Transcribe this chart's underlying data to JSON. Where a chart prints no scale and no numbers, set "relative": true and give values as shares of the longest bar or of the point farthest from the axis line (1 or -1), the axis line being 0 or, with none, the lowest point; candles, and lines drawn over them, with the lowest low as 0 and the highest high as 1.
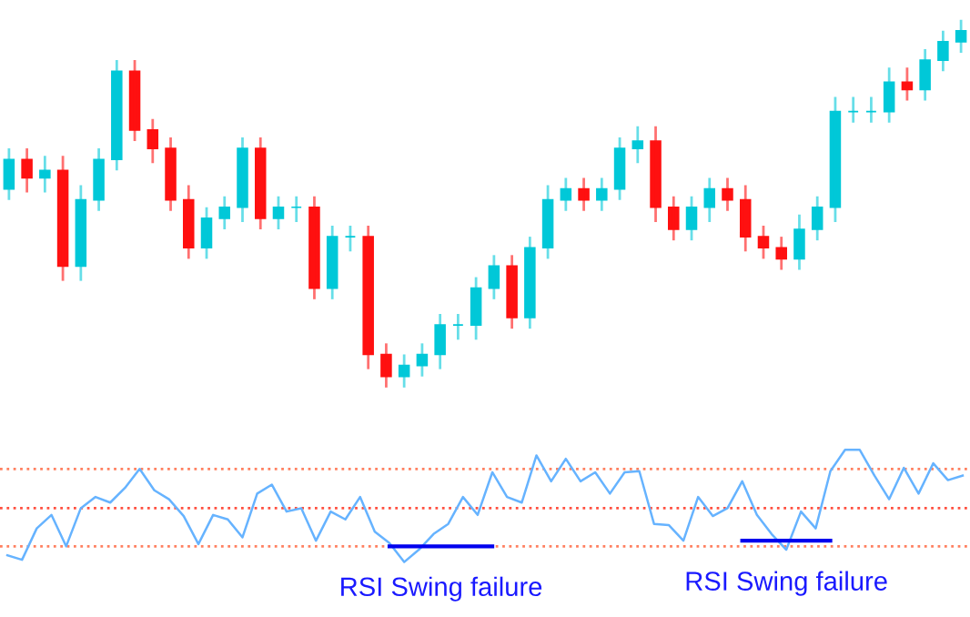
{
  "chart_data": [
    {
      "type": "candlestick",
      "relative": true,
      "tick_labels": false,
      "categories": [
        null,
        null,
        null,
        null,
        null,
        null,
        null,
        null,
        null,
        null,
        null,
        null,
        null,
        null,
        null,
        null,
        null,
        null,
        null,
        null,
        null,
        null,
        null,
        null,
        null,
        null,
        null,
        null,
        null,
        null,
        null,
        null,
        null,
        null,
        null,
        null,
        null,
        null,
        null,
        null,
        null,
        null,
        null,
        null,
        null,
        null,
        null,
        null,
        null,
        null,
        null,
        null,
        null,
        null
      ],
      "ohlc": [
        [
          0.54,
          0.65,
          0.51,
          0.62
        ],
        [
          0.62,
          0.65,
          0.53,
          0.57
        ],
        [
          0.57,
          0.63,
          0.53,
          0.59
        ],
        [
          0.59,
          0.63,
          0.29,
          0.33
        ],
        [
          0.33,
          0.55,
          0.29,
          0.51
        ],
        [
          0.51,
          0.65,
          0.48,
          0.62
        ],
        [
          0.62,
          0.89,
          0.59,
          0.86
        ],
        [
          0.86,
          0.89,
          0.67,
          0.7
        ],
        [
          0.7,
          0.73,
          0.61,
          0.65
        ],
        [
          0.65,
          0.68,
          0.48,
          0.51
        ],
        [
          0.51,
          0.55,
          0.35,
          0.38
        ],
        [
          0.38,
          0.49,
          0.35,
          0.46
        ],
        [
          0.46,
          0.52,
          0.43,
          0.49
        ],
        [
          0.49,
          0.68,
          0.45,
          0.65
        ],
        [
          0.65,
          0.68,
          0.43,
          0.46
        ],
        [
          0.46,
          0.52,
          0.43,
          0.49
        ],
        [
          0.49,
          0.52,
          0.45,
          0.49
        ],
        [
          0.49,
          0.52,
          0.24,
          0.27
        ],
        [
          0.27,
          0.44,
          0.24,
          0.41
        ],
        [
          0.41,
          0.44,
          0.37,
          0.41
        ],
        [
          0.41,
          0.44,
          0.05,
          0.09
        ],
        [
          0.09,
          0.12,
          0,
          0.03
        ],
        [
          0.03,
          0.09,
          0,
          0.06
        ],
        [
          0.06,
          0.12,
          0.03,
          0.09
        ],
        [
          0.09,
          0.2,
          0.05,
          0.17
        ],
        [
          0.17,
          0.2,
          0.13,
          0.17
        ],
        [
          0.17,
          0.3,
          0.13,
          0.27
        ],
        [
          0.27,
          0.36,
          0.24,
          0.33
        ],
        [
          0.33,
          0.36,
          0.16,
          0.19
        ],
        [
          0.19,
          0.41,
          0.16,
          0.38
        ],
        [
          0.38,
          0.55,
          0.35,
          0.51
        ],
        [
          0.51,
          0.57,
          0.48,
          0.54
        ],
        [
          0.54,
          0.57,
          0.48,
          0.51
        ],
        [
          0.51,
          0.57,
          0.48,
          0.54
        ],
        [
          0.54,
          0.68,
          0.51,
          0.65
        ],
        [
          0.65,
          0.71,
          0.61,
          0.67
        ],
        [
          0.67,
          0.71,
          0.45,
          0.49
        ],
        [
          0.49,
          0.52,
          0.4,
          0.43
        ],
        [
          0.43,
          0.52,
          0.4,
          0.49
        ],
        [
          0.49,
          0.57,
          0.45,
          0.54
        ],
        [
          0.54,
          0.57,
          0.48,
          0.51
        ],
        [
          0.51,
          0.55,
          0.37,
          0.41
        ],
        [
          0.41,
          0.44,
          0.35,
          0.38
        ],
        [
          0.38,
          0.41,
          0.32,
          0.35
        ],
        [
          0.35,
          0.47,
          0.32,
          0.43
        ],
        [
          0.43,
          0.52,
          0.4,
          0.49
        ],
        [
          0.49,
          0.79,
          0.45,
          0.75
        ],
        [
          0.75,
          0.79,
          0.72,
          0.75
        ],
        [
          0.75,
          0.79,
          0.72,
          0.75
        ],
        [
          0.75,
          0.87,
          0.72,
          0.83
        ],
        [
          0.83,
          0.87,
          0.78,
          0.81
        ],
        [
          0.81,
          0.92,
          0.78,
          0.89
        ],
        [
          0.89,
          0.97,
          0.86,
          0.94
        ],
        [
          0.94,
          1,
          0.91,
          0.97
        ]
      ],
      "colors": [
        "#00c8d8",
        "#ff1010",
        "#00c8d8",
        "#ff1010",
        "#00c8d8",
        "#00c8d8",
        "#00c8d8",
        "#ff1010",
        "#ff1010",
        "#ff1010",
        "#ff1010",
        "#00c8d8",
        "#00c8d8",
        "#00c8d8",
        "#ff1010",
        "#00c8d8",
        "#00c8d8",
        "#ff1010",
        "#00c8d8",
        "#00c8d8",
        "#ff1010",
        "#ff1010",
        "#00c8d8",
        "#00c8d8",
        "#00c8d8",
        "#00c8d8",
        "#00c8d8",
        "#00c8d8",
        "#ff1010",
        "#00c8d8",
        "#00c8d8",
        "#00c8d8",
        "#ff1010",
        "#00c8d8",
        "#00c8d8",
        "#00c8d8",
        "#ff1010",
        "#ff1010",
        "#00c8d8",
        "#00c8d8",
        "#ff1010",
        "#ff1010",
        "#ff1010",
        "#ff1010",
        "#00c8d8",
        "#00c8d8",
        "#00c8d8",
        "#00c8d8",
        "#00c8d8",
        "#00c8d8",
        "#ff1010",
        "#00c8d8",
        "#00c8d8",
        "#00c8d8"
      ]
    },
    {
      "type": "line",
      "relative": true,
      "tick_labels": false,
      "categories": [
        null,
        null,
        null,
        null,
        null,
        null,
        null,
        null,
        null,
        null,
        null,
        null,
        null,
        null,
        null,
        null,
        null,
        null,
        null,
        null,
        null,
        null,
        null,
        null,
        null,
        null,
        null,
        null,
        null,
        null,
        null,
        null,
        null,
        null,
        null,
        null,
        null,
        null,
        null,
        null,
        null,
        null,
        null,
        null,
        null,
        null,
        null,
        null,
        null,
        null,
        null,
        null,
        null,
        null,
        null,
        null,
        null,
        null,
        null,
        null,
        null,
        null,
        null,
        null,
        null,
        null
      ],
      "series": [
        {
          "color": "#66b3ff",
          "values": [
            0.06,
            0.02,
            0.3,
            0.42,
            0.14,
            0.48,
            0.58,
            0.53,
            0.66,
            0.83,
            0.64,
            0.56,
            0.41,
            0.16,
            0.42,
            0.38,
            0.22,
            0.61,
            0.69,
            0.45,
            0.48,
            0.19,
            0.45,
            0.38,
            0.58,
            0.27,
            0.17,
            0,
            0.11,
            0.25,
            0.34,
            0.58,
            0.42,
            0.8,
            0.58,
            0.53,
            0.95,
            0.72,
            0.92,
            0.72,
            0.8,
            0.61,
            0.8,
            0.81,
            0.34,
            0.33,
            0.19,
            0.58,
            0.41,
            0.48,
            0.72,
            0.42,
            0.25,
            0.11,
            0.45,
            0.3,
            0.81,
            1,
            1,
            0.77,
            0.56,
            0.84,
            0.61,
            0.88,
            0.73,
            0.77
          ]
        },
        {
          "color": "#0000ee",
          "values": [
            null,
            null,
            null,
            null,
            null,
            null,
            null,
            null,
            null,
            null,
            null,
            null,
            null,
            null,
            null,
            null,
            null,
            null,
            null,
            null,
            null,
            null,
            null,
            null,
            null,
            null,
            0.14,
            0.14,
            0.14,
            0.14,
            0.14,
            0.14,
            0.14,
            0.14,
            null,
            null,
            null,
            null,
            null,
            null,
            null,
            null,
            null,
            null,
            null,
            null,
            null,
            null,
            null,
            null,
            0.19,
            0.19,
            0.19,
            0.19,
            0.19,
            0.19,
            0.19,
            null,
            null,
            null,
            null,
            null,
            null,
            null,
            null,
            null
          ]
        }
      ],
      "ref_lines": [
        {
          "axis": "y",
          "value": 0.83,
          "color": "#ff8060",
          "line_style": "dotted"
        },
        {
          "axis": "y",
          "value": 0.48,
          "color": "#ff5040",
          "line_style": "dotted"
        },
        {
          "axis": "y",
          "value": 0.14,
          "color": "#ff8060",
          "line_style": "dotted"
        }
      ],
      "annotations": [
        "RSI Swing failure",
        "RSI Swing failure"
      ]
    }
  ]
}
